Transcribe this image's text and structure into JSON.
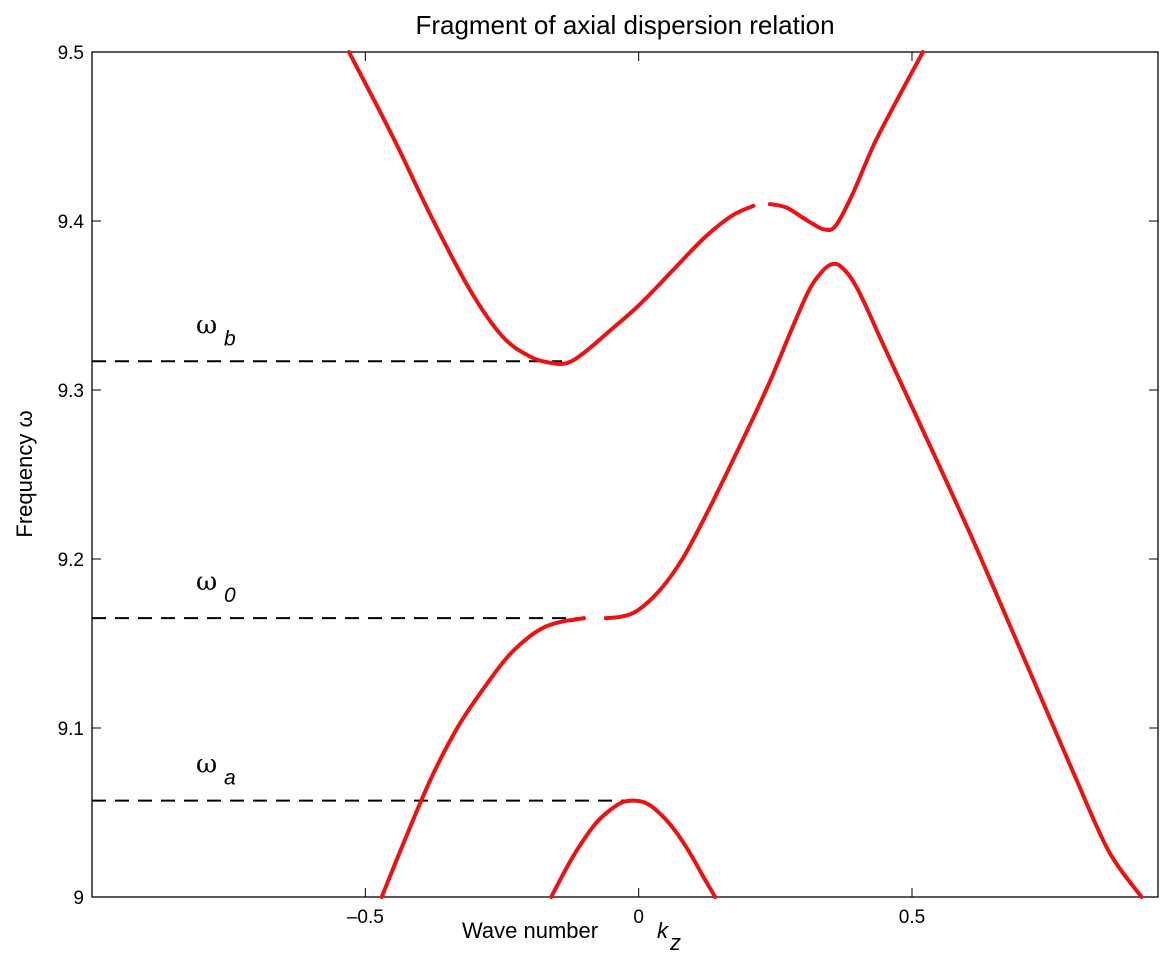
{
  "chart_data": {
    "type": "line",
    "title": "Fragment of axial dispersion relation",
    "xlabel": "Wave number",
    "xlabel_symbol": "k",
    "xlabel_sub": "z",
    "ylabel": "Frequency  ω",
    "xlim": [
      -1.0,
      0.95
    ],
    "ylim": [
      9.0,
      9.5
    ],
    "xticks": [
      -0.5,
      0,
      0.5
    ],
    "xtick_labels": [
      "-0.5",
      "0",
      "0.5"
    ],
    "yticks": [
      9.0,
      9.1,
      9.2,
      9.3,
      9.4,
      9.5
    ],
    "ytick_labels": [
      "9",
      "9.1",
      "9.2",
      "9.3",
      "9.4",
      "9.5"
    ],
    "grid": false,
    "series_color": "#ee1111",
    "series": [
      {
        "x": [
          -0.53,
          -0.45,
          -0.38,
          -0.31,
          -0.25,
          -0.2,
          -0.16,
          -0.13,
          -0.1,
          -0.06,
          0.0,
          0.06,
          0.12,
          0.17,
          0.21
        ],
        "y": [
          9.5,
          9.45,
          9.403,
          9.36,
          9.332,
          9.32,
          9.316,
          9.316,
          9.322,
          9.333,
          9.35,
          9.37,
          9.39,
          9.403,
          9.409
        ]
      },
      {
        "x": [
          0.24,
          0.27,
          0.3,
          0.32,
          0.34,
          0.36,
          0.39,
          0.43,
          0.47,
          0.52
        ],
        "y": [
          9.41,
          9.408,
          9.402,
          9.398,
          9.395,
          9.397,
          9.415,
          9.445,
          9.47,
          9.5
        ]
      },
      {
        "x": [
          -0.47,
          -0.43,
          -0.38,
          -0.33,
          -0.28,
          -0.24,
          -0.2,
          -0.17,
          -0.14,
          -0.12,
          -0.1
        ],
        "y": [
          9.0,
          9.032,
          9.07,
          9.101,
          9.125,
          9.142,
          9.154,
          9.16,
          9.163,
          9.164,
          9.165
        ]
      },
      {
        "x": [
          -0.06,
          -0.03,
          0.0,
          0.04,
          0.08,
          0.12,
          0.16,
          0.2,
          0.24,
          0.28,
          0.31,
          0.33,
          0.35,
          0.37,
          0.4,
          0.45,
          0.5,
          0.56,
          0.62,
          0.68,
          0.74,
          0.8,
          0.86,
          0.92
        ],
        "y": [
          9.165,
          9.166,
          9.17,
          9.182,
          9.2,
          9.224,
          9.25,
          9.277,
          9.305,
          9.336,
          9.358,
          9.368,
          9.374,
          9.373,
          9.36,
          9.325,
          9.29,
          9.248,
          9.205,
          9.16,
          9.115,
          9.07,
          9.027,
          9.0
        ]
      },
      {
        "x": [
          -0.16,
          -0.12,
          -0.08,
          -0.05,
          -0.03,
          -0.01,
          0.01,
          0.03,
          0.06,
          0.09,
          0.12,
          0.14
        ],
        "y": [
          9.0,
          9.024,
          9.043,
          9.052,
          9.056,
          9.057,
          9.056,
          9.052,
          9.042,
          9.028,
          9.011,
          9.0
        ]
      }
    ],
    "reference_lines": [
      {
        "y": 9.317,
        "x_end": -0.14,
        "label": "ω",
        "sub": "b"
      },
      {
        "y": 9.165,
        "x_end": -0.11,
        "label": "ω",
        "sub": "0"
      },
      {
        "y": 9.057,
        "x_end": -0.01,
        "label": "ω",
        "sub": "a"
      }
    ]
  }
}
